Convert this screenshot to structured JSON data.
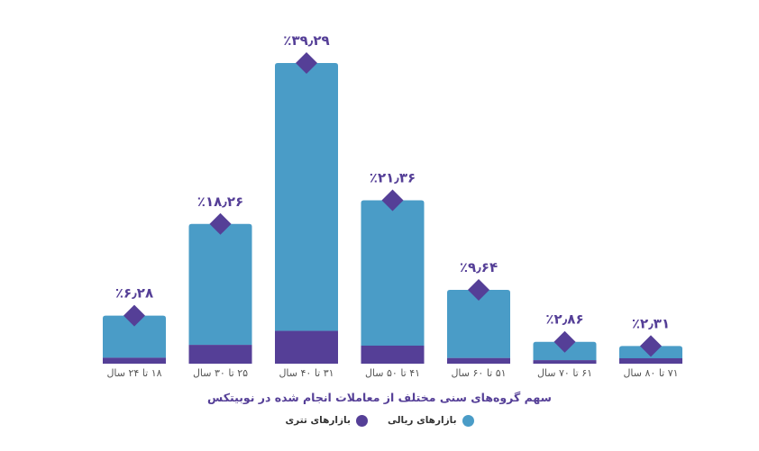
{
  "chart_data": {
    "type": "bar",
    "title": "سهم گروه‌های سنی مختلف از معاملات انجام شده در نوبیتکس",
    "categories": [
      "۱۸ تا ۲۴ سال",
      "۲۵ تا ۳۰ سال",
      "۳۱ تا ۴۰ سال",
      "۴۱ تا ۵۰ سال",
      "۵۱ تا ۶۰ سال",
      "۶۱ تا ۷۰ سال",
      "۷۱ تا ۸۰ سال"
    ],
    "value_labels": [
      "٪۶٫۲۸",
      "٪۱۸٫۲۶",
      "٪۳۹٫۲۹",
      "٪۲۱٫۳۶",
      "٪۹٫۶۴",
      "٪۲٫۸۶",
      "٪۲٫۳۱"
    ],
    "series": [
      {
        "name": "بازارهای ریالی",
        "color": "#4a9cc7",
        "values": [
          5.5,
          15.8,
          35.0,
          19.0,
          8.9,
          2.4,
          1.6
        ]
      },
      {
        "name": "بازارهای تتری",
        "color": "#553f97",
        "values": [
          0.78,
          2.46,
          4.29,
          2.36,
          0.74,
          0.46,
          0.71
        ]
      }
    ],
    "totals": [
      6.28,
      18.26,
      39.29,
      21.36,
      9.64,
      2.86,
      2.31
    ],
    "stacked": true,
    "ylim": [
      0,
      40
    ],
    "legend_position": "bottom-center",
    "grid": false,
    "value_label_color": "#553f97",
    "marker": "diamond"
  }
}
